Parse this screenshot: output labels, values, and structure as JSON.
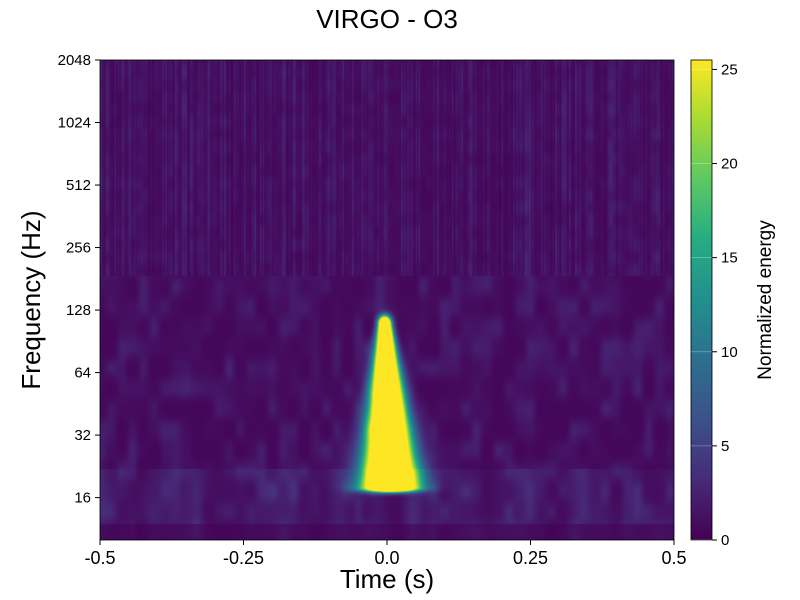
{
  "chart_data": {
    "type": "heatmap",
    "title": "VIRGO - O3",
    "xlabel": "Time (s)",
    "ylabel": "Frequency (Hz)",
    "xlim": [
      -0.5,
      0.5
    ],
    "ylim": [
      10,
      2048
    ],
    "y_scale": "log2",
    "x_ticks": [
      -0.5,
      -0.25,
      0.0,
      0.25,
      0.5
    ],
    "x_tick_labels": [
      "-0.5",
      "-0.25",
      "0.0",
      "0.25",
      "0.5"
    ],
    "y_ticks": [
      16,
      32,
      64,
      128,
      256,
      512,
      1024,
      2048
    ],
    "y_tick_labels": [
      "16",
      "32",
      "64",
      "128",
      "256",
      "512",
      "1024",
      "2048"
    ],
    "colormap": "viridis",
    "colorbar": {
      "label": "Normalized energy",
      "range": [
        0,
        25.5
      ],
      "ticks": [
        0,
        5,
        10,
        15,
        20,
        25
      ],
      "tick_labels": [
        "0",
        "5",
        "10",
        "15",
        "20",
        "25"
      ]
    },
    "features": [
      {
        "t_center": 0.005,
        "f_low": 18,
        "f_high": 110,
        "peak_energy": 25.5,
        "shape": "chirp"
      }
    ],
    "background_noise_level": 1.5
  }
}
